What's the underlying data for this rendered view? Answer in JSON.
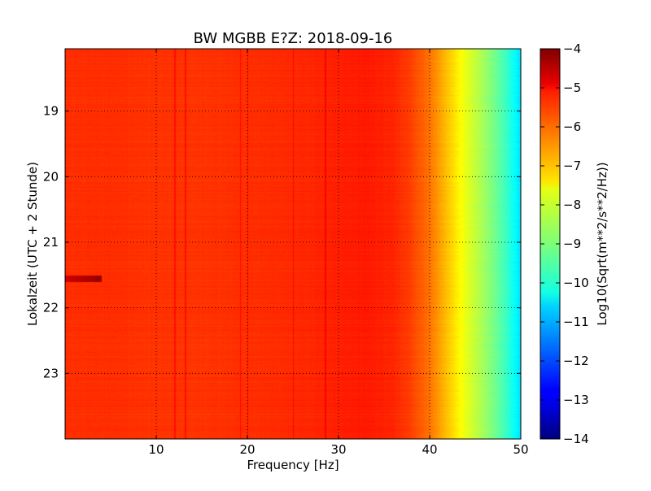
{
  "chart_data": {
    "type": "heatmap",
    "title": "BW MGBB E?Z: 2018-09-16",
    "xlabel": "Frequency [Hz]",
    "ylabel": "Lokalzeit (UTC + 2 Stunde)",
    "colorbar_label": "Log10(Sqrt(m**2/s**2/Hz))",
    "xlim": [
      0,
      50
    ],
    "ylim": [
      24,
      18.05
    ],
    "y_inverted": true,
    "xticks": [
      10,
      20,
      30,
      40,
      50
    ],
    "xtick_labels": [
      "10",
      "20",
      "30",
      "40",
      "50"
    ],
    "yticks": [
      19,
      20,
      21,
      22,
      23
    ],
    "ytick_labels": [
      "19",
      "20",
      "21",
      "22",
      "23"
    ],
    "colorbar_range": [
      -14,
      -4
    ],
    "colorbar_ticks": [
      -4,
      -5,
      -6,
      -7,
      -8,
      -9,
      -10,
      -11,
      -12,
      -13,
      -14
    ],
    "colorbar_tick_labels": [
      "−4",
      "−5",
      "−6",
      "−7",
      "−8",
      "−9",
      "−10",
      "−11",
      "−12",
      "−13",
      "−14"
    ],
    "colormap": "jet",
    "grid": true,
    "frequency_profile": {
      "x": [
        0,
        5,
        10,
        15,
        20,
        25,
        30,
        33,
        36,
        38,
        40,
        42,
        44,
        46,
        48,
        50
      ],
      "value": [
        -5.7,
        -5.7,
        -5.75,
        -5.75,
        -5.7,
        -5.65,
        -5.55,
        -5.5,
        -5.6,
        -5.9,
        -6.4,
        -7.2,
        -8.0,
        -8.7,
        -9.5,
        -10.6
      ]
    },
    "vertical_lines_hz": [
      12,
      13.2,
      19.2,
      20,
      25,
      28.5
    ],
    "hot_spots": [
      {
        "freq_range": [
          0,
          4
        ],
        "time": 21.55,
        "value": -4.8
      }
    ]
  }
}
